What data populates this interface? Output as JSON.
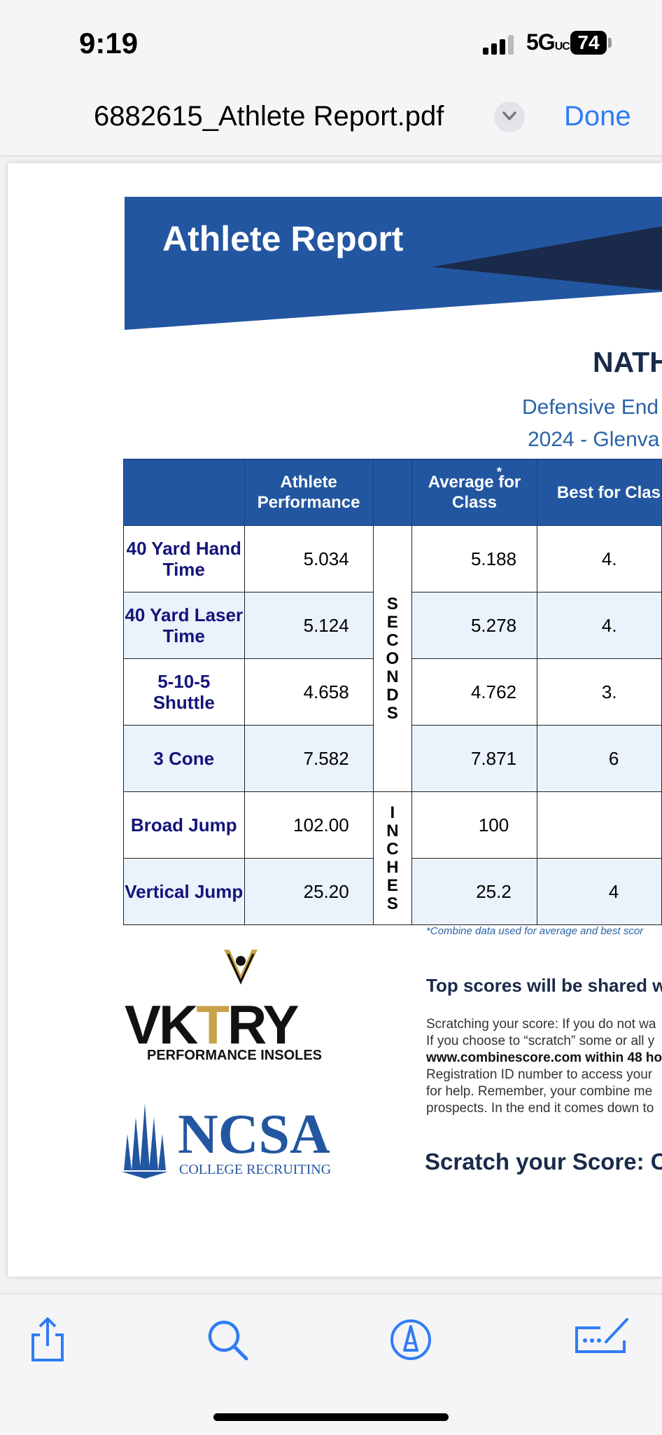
{
  "status_bar": {
    "time": "9:19",
    "network": "5G",
    "network_suffix": "UC",
    "battery": "74"
  },
  "nav": {
    "title": "6882615_Athlete Report.pdf",
    "done_label": "Done"
  },
  "document": {
    "banner_title": "Athlete Report",
    "athlete_name": "NATH",
    "position_line": "Defensive End",
    "event_line": "2024 - Glenva",
    "table": {
      "headers": {
        "performance": "Athlete Performance",
        "average": "Average for Class",
        "average_mark": "*",
        "best": "Best for Clas"
      },
      "rows": [
        {
          "metric": "40 Yard Hand Time",
          "performance": "5.034",
          "average": "5.188",
          "best": "4."
        },
        {
          "metric": "40 Yard Laser Time",
          "performance": "5.124",
          "average": "5.278",
          "best": "4."
        },
        {
          "metric": "5-10-5 Shuttle",
          "performance": "4.658",
          "average": "4.762",
          "best": "3."
        },
        {
          "metric": "3 Cone",
          "performance": "7.582",
          "average": "7.871",
          "best": "6"
        },
        {
          "metric": "Broad Jump",
          "performance": "102.00",
          "average": "100",
          "best": ""
        },
        {
          "metric": "Vertical Jump",
          "performance": "25.20",
          "average": "25.2",
          "best": "4"
        }
      ],
      "unit_seconds": "S\nE\nC\nO\nN\nD\nS",
      "unit_inches": "I\nN\nC\nH\nE\nS"
    },
    "footnote": "*Combine data used for average and best scor",
    "vktry": {
      "logo_text": "VKTRY",
      "logo_accent": "T",
      "tagline": "PERFORMANCE INSOLES"
    },
    "ncsa": {
      "logo_text": "NCSA",
      "tagline": "COLLEGE RECRUITING"
    },
    "top_scores": "Top scores will be shared wit",
    "scratch_lines": [
      "Scratching your score:  If you do not wa",
      "If you choose to “scratch” some or all y",
      "www.combinescore.com within 48 ho",
      "Registration ID number to access your",
      "for help. Remember, your combine me",
      "prospects. In the end it comes down to"
    ],
    "scratch_heading": "Scratch your Score: C"
  },
  "colors": {
    "brand_blue": "#2356a0",
    "dark_navy": "#1a2a4a",
    "ios_blue": "#2f7cf6",
    "gold": "#c9a24a"
  },
  "toolbar": {
    "icons": [
      "share-icon",
      "search-icon",
      "markup-icon",
      "signature-icon"
    ]
  }
}
